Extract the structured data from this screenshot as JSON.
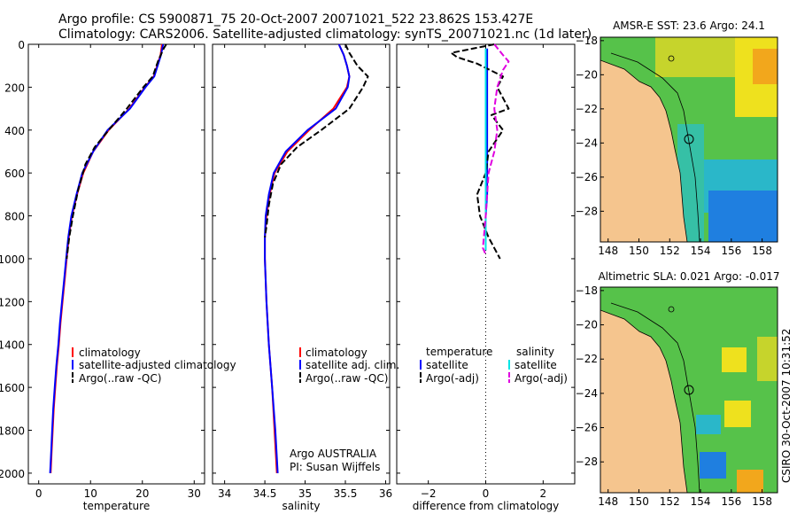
{
  "header": {
    "line1": "Argo profile: CS 5900871_75 20-Oct-2007 20071021_522 23.862S 153.427E",
    "line2": "Climatology: CARS2006. Satellite-adjusted climatology: synTS_20071021.nc (1d later)"
  },
  "credit": "CSIRO 30-Oct-2007 10:31:52",
  "colors": {
    "climatology": "#ff0000",
    "satellite": "#0000ff",
    "argo": "#000000",
    "salinity_satellite": "#00e5e5",
    "salinity_argo": "#e000e0",
    "land": "#f5c58e",
    "frame": "#000000"
  },
  "chart_data": [
    {
      "type": "line",
      "id": "temperature",
      "xlabel": "temperature",
      "ylabel": "",
      "xlim": [
        -2,
        32
      ],
      "ylim": [
        2050,
        0
      ],
      "xticks": [
        0,
        10,
        20,
        30
      ],
      "yticks": [
        0,
        200,
        400,
        600,
        800,
        1000,
        1200,
        1400,
        1600,
        1800,
        2000
      ],
      "legend": [
        "climatology",
        "satellite-adjusted climatology",
        "Argo(..raw -QC)"
      ],
      "series": [
        {
          "name": "climatology",
          "color": "#ff0000",
          "style": "solid",
          "points": [
            [
              23.8,
              0
            ],
            [
              23.5,
              50
            ],
            [
              22.2,
              150
            ],
            [
              20.5,
              200
            ],
            [
              17.5,
              300
            ],
            [
              13.5,
              400
            ],
            [
              10.5,
              500
            ],
            [
              8.6,
              600
            ],
            [
              7.4,
              700
            ],
            [
              6.4,
              800
            ],
            [
              5.8,
              900
            ],
            [
              5.4,
              1000
            ],
            [
              5.0,
              1100
            ],
            [
              4.6,
              1200
            ],
            [
              4.2,
              1300
            ],
            [
              3.9,
              1400
            ],
            [
              3.5,
              1500
            ],
            [
              3.2,
              1600
            ],
            [
              2.9,
              1700
            ],
            [
              2.7,
              1800
            ],
            [
              2.5,
              1900
            ],
            [
              2.3,
              2000
            ]
          ]
        },
        {
          "name": "satellite-adjusted climatology",
          "color": "#0000ff",
          "style": "solid",
          "points": [
            [
              24.0,
              0
            ],
            [
              23.6,
              50
            ],
            [
              22.3,
              150
            ],
            [
              20.6,
              200
            ],
            [
              17.6,
              300
            ],
            [
              13.3,
              400
            ],
            [
              10.5,
              500
            ],
            [
              8.4,
              600
            ],
            [
              7.3,
              700
            ],
            [
              6.3,
              800
            ],
            [
              5.7,
              900
            ],
            [
              5.3,
              1000
            ],
            [
              4.9,
              1100
            ],
            [
              4.5,
              1200
            ],
            [
              4.1,
              1300
            ],
            [
              3.8,
              1400
            ],
            [
              3.4,
              1500
            ],
            [
              3.1,
              1600
            ],
            [
              2.8,
              1700
            ],
            [
              2.6,
              1800
            ],
            [
              2.4,
              1900
            ],
            [
              2.2,
              2000
            ]
          ]
        },
        {
          "name": "Argo(..raw -QC)",
          "color": "#000000",
          "style": "dashed",
          "points": [
            [
              24.6,
              0
            ],
            [
              24.1,
              20
            ],
            [
              23.0,
              80
            ],
            [
              22.0,
              150
            ],
            [
              20.2,
              200
            ],
            [
              17.0,
              300
            ],
            [
              13.5,
              400
            ],
            [
              10.8,
              480
            ],
            [
              9.0,
              560
            ],
            [
              7.6,
              680
            ],
            [
              6.6,
              800
            ],
            [
              5.9,
              900
            ],
            [
              5.4,
              1000
            ]
          ]
        }
      ]
    },
    {
      "type": "line",
      "id": "salinity",
      "xlabel": "salinity",
      "xlim": [
        33.85,
        36.05
      ],
      "ylim": [
        2050,
        0
      ],
      "xticks": [
        34,
        34.5,
        35,
        35.5,
        36
      ],
      "yticks": [
        0,
        200,
        400,
        600,
        800,
        1000,
        1200,
        1400,
        1600,
        1800,
        2000
      ],
      "legend": [
        "climatology",
        "satellite adj. clim.",
        "Argo(..raw -QC)"
      ],
      "annotation": [
        "Argo AUSTRALIA",
        "PI: Susan Wijffels"
      ],
      "series": [
        {
          "name": "climatology",
          "color": "#ff0000",
          "style": "solid",
          "points": [
            [
              35.42,
              0
            ],
            [
              35.48,
              50
            ],
            [
              35.52,
              100
            ],
            [
              35.55,
              150
            ],
            [
              35.52,
              200
            ],
            [
              35.35,
              300
            ],
            [
              35.05,
              400
            ],
            [
              34.78,
              500
            ],
            [
              34.62,
              600
            ],
            [
              34.56,
              700
            ],
            [
              34.52,
              800
            ],
            [
              34.5,
              900
            ],
            [
              34.5,
              1000
            ],
            [
              34.52,
              1200
            ],
            [
              34.55,
              1400
            ],
            [
              34.59,
              1600
            ],
            [
              34.62,
              1800
            ],
            [
              34.65,
              2000
            ]
          ]
        },
        {
          "name": "satellite adj. clim.",
          "color": "#0000ff",
          "style": "solid",
          "points": [
            [
              35.42,
              0
            ],
            [
              35.48,
              50
            ],
            [
              35.52,
              100
            ],
            [
              35.55,
              150
            ],
            [
              35.53,
              200
            ],
            [
              35.38,
              300
            ],
            [
              35.03,
              400
            ],
            [
              34.76,
              500
            ],
            [
              34.61,
              600
            ],
            [
              34.55,
              700
            ],
            [
              34.51,
              800
            ],
            [
              34.5,
              900
            ],
            [
              34.5,
              1000
            ],
            [
              34.52,
              1200
            ],
            [
              34.55,
              1400
            ],
            [
              34.59,
              1600
            ],
            [
              34.63,
              1800
            ],
            [
              34.66,
              2000
            ]
          ]
        },
        {
          "name": "Argo(..raw -QC)",
          "color": "#000000",
          "style": "dashed",
          "points": [
            [
              35.5,
              0
            ],
            [
              35.55,
              40
            ],
            [
              35.65,
              100
            ],
            [
              35.78,
              150
            ],
            [
              35.72,
              200
            ],
            [
              35.55,
              300
            ],
            [
              35.2,
              400
            ],
            [
              34.9,
              480
            ],
            [
              34.7,
              560
            ],
            [
              34.6,
              650
            ],
            [
              34.55,
              750
            ],
            [
              34.52,
              850
            ],
            [
              34.5,
              900
            ]
          ]
        }
      ]
    },
    {
      "type": "line",
      "id": "difference",
      "xlabel": "difference from climatology",
      "xlim": [
        -3.1,
        3.1
      ],
      "ylim": [
        2050,
        0
      ],
      "xticks": [
        -2,
        0,
        2
      ],
      "yticks": [
        0,
        200,
        400,
        600,
        800,
        1000,
        1200,
        1400,
        1600,
        1800,
        2000
      ],
      "legend_titles": [
        "temperature",
        "salinity"
      ],
      "legend": [
        "satellite",
        "Argo(-adj)",
        "satellite",
        "Argo(-adj)"
      ],
      "series": [
        {
          "name": "temperature satellite",
          "color": "#0000ff",
          "style": "solid",
          "points": [
            [
              0.05,
              20
            ],
            [
              0.05,
              100
            ],
            [
              0.05,
              200
            ],
            [
              0.05,
              300
            ],
            [
              0.05,
              400
            ],
            [
              0.05,
              500
            ],
            [
              0.05,
              600
            ],
            [
              0.05,
              700
            ],
            [
              0.0,
              800
            ],
            [
              0.0,
              900
            ],
            [
              0.0,
              960
            ]
          ]
        },
        {
          "name": "temperature Argo(-adj)",
          "color": "#000000",
          "style": "dashed",
          "points": [
            [
              0.3,
              0
            ],
            [
              -1.2,
              40
            ],
            [
              -1.0,
              60
            ],
            [
              -0.3,
              90
            ],
            [
              0.6,
              150
            ],
            [
              0.4,
              200
            ],
            [
              0.8,
              300
            ],
            [
              0.2,
              330
            ],
            [
              0.6,
              400
            ],
            [
              0.1,
              500
            ],
            [
              0.0,
              600
            ],
            [
              -0.3,
              700
            ],
            [
              -0.2,
              800
            ],
            [
              0.1,
              900
            ],
            [
              0.5,
              1000
            ]
          ]
        },
        {
          "name": "salinity satellite",
          "color": "#00e5e5",
          "style": "solid",
          "points": [
            [
              0.0,
              20
            ],
            [
              0.0,
              100
            ],
            [
              0.0,
              200
            ],
            [
              0.0,
              400
            ],
            [
              0.0,
              600
            ],
            [
              0.0,
              800
            ],
            [
              0.0,
              960
            ]
          ]
        },
        {
          "name": "salinity Argo(-adj)",
          "color": "#e000e0",
          "style": "dashed",
          "points": [
            [
              0.3,
              0
            ],
            [
              0.6,
              50
            ],
            [
              0.8,
              80
            ],
            [
              0.6,
              120
            ],
            [
              0.4,
              200
            ],
            [
              0.3,
              300
            ],
            [
              0.4,
              400
            ],
            [
              0.3,
              500
            ],
            [
              0.1,
              600
            ],
            [
              0.0,
              800
            ],
            [
              -0.1,
              950
            ],
            [
              0.0,
              980
            ]
          ]
        }
      ]
    },
    {
      "type": "heatmap",
      "id": "sst-map",
      "title": "AMSR-E SST: 23.6  Argo: 24.1",
      "xlim": [
        147.5,
        159
      ],
      "ylim": [
        -29.8,
        -17.8
      ],
      "xticks": [
        148,
        150,
        152,
        154,
        156,
        158
      ],
      "yticks": [
        -18,
        -20,
        -22,
        -24,
        -26,
        -28
      ],
      "argo_position": [
        153.427,
        -23.862
      ]
    },
    {
      "type": "heatmap",
      "id": "sla-map",
      "title": "Altimetric SLA: 0.021  Argo: -0.017",
      "xlim": [
        147.5,
        159
      ],
      "ylim": [
        -29.8,
        -17.8
      ],
      "xticks": [
        148,
        150,
        152,
        154,
        156,
        158
      ],
      "yticks": [
        -18,
        -20,
        -22,
        -24,
        -26,
        -28
      ],
      "argo_position": [
        153.427,
        -23.862
      ]
    }
  ]
}
